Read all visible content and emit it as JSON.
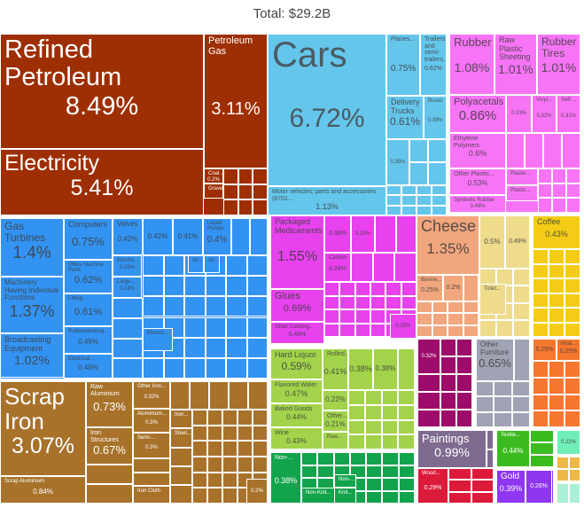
{
  "chart_data": {
    "type": "treemap",
    "title": "Total: $29.2B",
    "colors": {
      "mineral": "#9E2F02",
      "transport": "#65C6EC",
      "plastics": "#F774F6",
      "machinery": "#3393F2",
      "chemicals": "#E742EE",
      "cheese": "#F1A67D",
      "paleyellow": "#EEDB8C",
      "coffee": "#F4CC18",
      "foodgreen": "#A2D34B",
      "textiles": "#12A44C",
      "maroon": "#9D0B6B",
      "gray": "#A0A3B4",
      "orange": "#F6772E",
      "paintings": "#7F6B8F",
      "wood": "#DC1A3A",
      "textilegreen": "#3CBB21",
      "gold": "#8E36F0",
      "mint": "#70EEB9",
      "amber": "#EEB849",
      "palemint": "#A9F0D6",
      "metals": "#A8722B"
    },
    "items": [
      {
        "group": "mineral",
        "name": "Refined Petroleum",
        "value": "8.49%"
      },
      {
        "group": "mineral",
        "name": "Electricity",
        "value": "5.41%"
      },
      {
        "group": "mineral",
        "name": "Petroleum Gas",
        "value": "3.11%"
      },
      {
        "group": "mineral",
        "name": "Coal...",
        "value": "0.2%"
      },
      {
        "group": "mineral",
        "name": "Gravel...",
        "value": ""
      },
      {
        "group": "transport",
        "name": "Cars",
        "value": "6.72%"
      },
      {
        "group": "transport",
        "name": "Motor vehicles; parts and accessories (8701...",
        "value": "1.13%"
      },
      {
        "group": "transport",
        "name": "Planes...",
        "value": "0.75%"
      },
      {
        "group": "transport",
        "name": "Trailers and semi-trailers...",
        "value": "0.62%"
      },
      {
        "group": "transport",
        "name": "Delivery Trucks",
        "value": "0.61%"
      },
      {
        "group": "transport",
        "name": "Buses",
        "value": "0.39%"
      },
      {
        "group": "transport",
        "name": "",
        "value": "0.35%"
      },
      {
        "group": "plastics",
        "name": "Rubber",
        "value": "1.08%"
      },
      {
        "group": "plastics",
        "name": "Raw Plastic Sheeting",
        "value": "1.01%"
      },
      {
        "group": "plastics",
        "name": "Rubber Tires",
        "value": "1.01%"
      },
      {
        "group": "plastics",
        "name": "Polyacetals",
        "value": "0.86%"
      },
      {
        "group": "plastics",
        "name": "",
        "value": "0.33%"
      },
      {
        "group": "plastics",
        "name": "Vinyl...",
        "value": "0.32%"
      },
      {
        "group": "plastics",
        "name": "Self-...",
        "value": "0.31%"
      },
      {
        "group": "plastics",
        "name": "Ethylene Polymers",
        "value": "0.6%"
      },
      {
        "group": "plastics",
        "name": "Other Plastic...",
        "value": "0.53%"
      },
      {
        "group": "plastics",
        "name": "Synthetic Rubber",
        "value": "0.48%"
      },
      {
        "group": "plastics",
        "name": "Plastic...",
        "value": ""
      },
      {
        "group": "plastics",
        "name": "Plastic...",
        "value": ""
      },
      {
        "group": "machinery",
        "name": "Gas Turbines",
        "value": "1.4%"
      },
      {
        "group": "machinery",
        "name": "Machinery Having Individual Functions",
        "value": "1.37%"
      },
      {
        "group": "machinery",
        "name": "Broadcasting Equipment",
        "value": "1.02%"
      },
      {
        "group": "machinery",
        "name": "Computers",
        "value": "0.75%"
      },
      {
        "group": "machinery",
        "name": "Office Machine Parts",
        "value": "0.62%"
      },
      {
        "group": "machinery",
        "name": "Lifting...",
        "value": "0.61%"
      },
      {
        "group": "machinery",
        "name": "Rubberworking...",
        "value": "0.49%"
      },
      {
        "group": "machinery",
        "name": "Electrical...",
        "value": "0.48%"
      },
      {
        "group": "machinery",
        "name": "Valves",
        "value": "0.42%"
      },
      {
        "group": "machinery",
        "name": "",
        "value": "0.42%"
      },
      {
        "group": "machinery",
        "name": "",
        "value": "0.41%"
      },
      {
        "group": "machinery",
        "name": "Liquid Pumps",
        "value": "0.4%"
      },
      {
        "group": "machinery",
        "name": "Electric...",
        "value": "0.25%"
      },
      {
        "group": "machinery",
        "name": "Large...",
        "value": "0.24%"
      },
      {
        "group": "machinery",
        "name": "Air...",
        "value": ""
      },
      {
        "group": "machinery",
        "name": "Air...",
        "value": ""
      },
      {
        "group": "machinery",
        "name": "Electric...",
        "value": ""
      },
      {
        "group": "chemicals",
        "name": "Packaged Medicaments",
        "value": "1.55%"
      },
      {
        "group": "chemicals",
        "name": "Glues",
        "value": "0.69%"
      },
      {
        "group": "chemicals",
        "name": "Other Coloring...",
        "value": "0.49%"
      },
      {
        "group": "chemicals",
        "name": "",
        "value": "0.38%"
      },
      {
        "group": "chemicals",
        "name": "",
        "value": "0.33%"
      },
      {
        "group": "chemicals",
        "name": "Carbon",
        "value": "0.28%"
      },
      {
        "group": "chemicals",
        "name": "",
        "value": "0.25%"
      },
      {
        "group": "cheese",
        "name": "Cheese",
        "value": "1.35%"
      },
      {
        "group": "cheese",
        "name": "Bovine...",
        "value": "0.25%"
      },
      {
        "group": "cheese",
        "name": "",
        "value": "0.2%"
      },
      {
        "group": "paleyellow",
        "name": "",
        "value": "0.5%"
      },
      {
        "group": "paleyellow",
        "name": "",
        "value": "0.49%"
      },
      {
        "group": "paleyellow",
        "name": "Toilet...",
        "value": ""
      },
      {
        "group": "coffee",
        "name": "Coffee",
        "value": "0.43%"
      },
      {
        "group": "foodgreen",
        "name": "Hard Liquor",
        "value": "0.59%"
      },
      {
        "group": "foodgreen",
        "name": "Flavored Water",
        "value": "0.47%"
      },
      {
        "group": "foodgreen",
        "name": "Baked Goods",
        "value": "0.44%"
      },
      {
        "group": "foodgreen",
        "name": "Wine",
        "value": "0.43%"
      },
      {
        "group": "foodgreen",
        "name": "Rolled...",
        "value": "0.41%"
      },
      {
        "group": "foodgreen",
        "name": "",
        "value": "0.38%"
      },
      {
        "group": "foodgreen",
        "name": "",
        "value": "0.38%"
      },
      {
        "group": "foodgreen",
        "name": "",
        "value": "0.22%"
      },
      {
        "group": "foodgreen",
        "name": "Other...",
        "value": "0.21%"
      },
      {
        "group": "foodgreen",
        "name": "Raw...",
        "value": ""
      },
      {
        "group": "textiles",
        "name": "Non-...",
        "value": "0.38%"
      },
      {
        "group": "textiles",
        "name": "Non-...",
        "value": ""
      },
      {
        "group": "textiles",
        "name": "Non-Knit...",
        "value": ""
      },
      {
        "group": "textiles",
        "name": "Knit...",
        "value": ""
      },
      {
        "group": "maroon",
        "name": "",
        "value": "0.32%"
      },
      {
        "group": "gray",
        "name": "Other Furniture",
        "value": "0.65%"
      },
      {
        "group": "orange",
        "name": "",
        "value": "0.25%"
      },
      {
        "group": "orange",
        "name": "Hoat...",
        "value": "0.25%"
      },
      {
        "group": "paintings",
        "name": "Paintings",
        "value": "0.99%"
      },
      {
        "group": "wood",
        "name": "Wood...",
        "value": "0.29%"
      },
      {
        "group": "textilegreen",
        "name": "Textile...",
        "value": "0.44%"
      },
      {
        "group": "gold",
        "name": "Gold",
        "value": "0.39%"
      },
      {
        "group": "gold",
        "name": "",
        "value": "0.26%"
      },
      {
        "group": "mint",
        "name": "",
        "value": "0.22%"
      },
      {
        "group": "metals",
        "name": "Scrap Iron",
        "value": "3.07%"
      },
      {
        "group": "metals",
        "name": "Scrap Aluminium",
        "value": "0.84%"
      },
      {
        "group": "metals",
        "name": "Raw Aluminium",
        "value": "0.73%"
      },
      {
        "group": "metals",
        "name": "Iron Structures",
        "value": "0.67%"
      },
      {
        "group": "metals",
        "name": "Other Iron...",
        "value": "0.32%"
      },
      {
        "group": "metals",
        "name": "Aluminium...",
        "value": "0.3%"
      },
      {
        "group": "metals",
        "name": "Semi-...",
        "value": "0.3%"
      },
      {
        "group": "metals",
        "name": "Iron Cloth",
        "value": ""
      },
      {
        "group": "metals",
        "name": "Iron...",
        "value": ""
      },
      {
        "group": "metals",
        "name": "Steel...",
        "value": ""
      },
      {
        "group": "metals",
        "name": "",
        "value": "0.2%"
      }
    ]
  }
}
